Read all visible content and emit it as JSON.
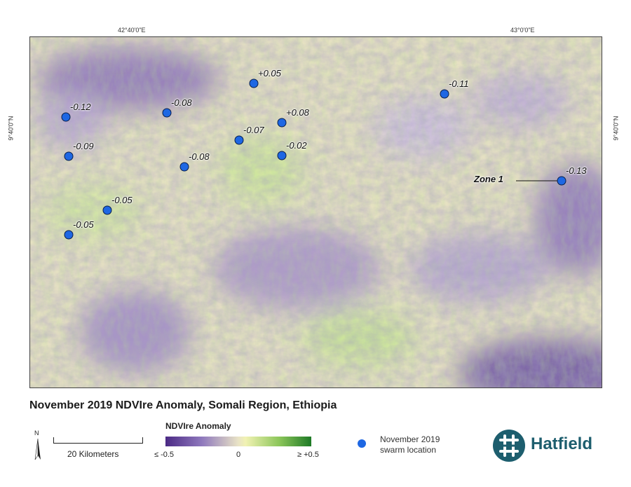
{
  "coordinates": {
    "top_left_lon": "42°40'0\"E",
    "top_right_lon": "43°0'0\"E",
    "left_lat": "9°40'0\"N",
    "right_lat": "9°40'0\"N"
  },
  "swarms": [
    {
      "label": "-0.12"
    },
    {
      "label": "-0.08"
    },
    {
      "label": "+0.05"
    },
    {
      "label": "+0.08"
    },
    {
      "label": "-0.07"
    },
    {
      "label": "-0.02"
    },
    {
      "label": "-0.11"
    },
    {
      "label": "-0.09"
    },
    {
      "label": "-0.08"
    },
    {
      "label": "-0.05"
    },
    {
      "label": "-0.05"
    },
    {
      "label": "-0.13"
    }
  ],
  "zone_label": "Zone 1",
  "title": "November 2019 NDVIre Anomaly, Somali Region, Ethiopia",
  "north_letter": "N",
  "scale_label": "20 Kilometers",
  "legend": {
    "title": "NDVIre Anomaly",
    "min_label": "≤ -0.5",
    "mid_label": "0",
    "max_label": "≥ +0.5"
  },
  "swarm_legend": {
    "line1": "November 2019",
    "line2": "swarm location"
  },
  "brand": "Hatfield",
  "colors": {
    "swarm": "#1e67e3",
    "negative_anomaly": "#5b3b93",
    "neutral": "#ecebc4",
    "positive_anomaly": "#2f8f32",
    "brand": "#1d5e6e"
  }
}
